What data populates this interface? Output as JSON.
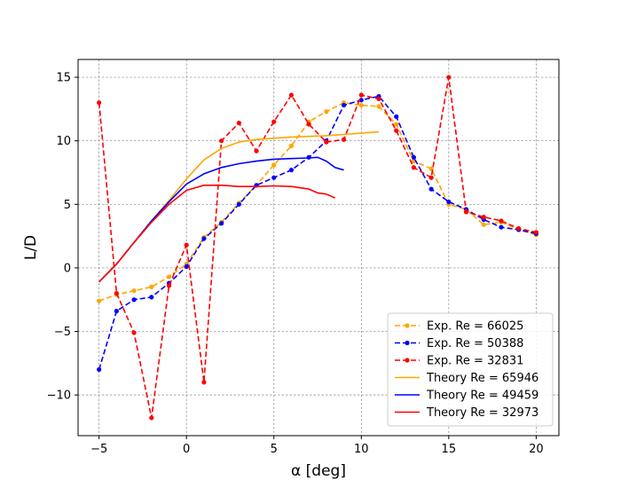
{
  "chart_data": {
    "type": "line",
    "title": "",
    "xlabel": "α [deg]",
    "ylabel": "L/D",
    "xlim": [
      -6.2,
      21.3
    ],
    "ylim": [
      -13.2,
      16.4
    ],
    "xticks": [
      -5,
      0,
      5,
      10,
      15,
      20
    ],
    "yticks": [
      -10,
      -5,
      0,
      5,
      10,
      15
    ],
    "grid": true,
    "legend_position": "lower-right",
    "series": [
      {
        "name": "Exp. Re = 66025",
        "color": "#FFA500",
        "style": "dashed",
        "marker": "dot",
        "x": [
          -5,
          -4,
          -3,
          -2,
          -1,
          0,
          1,
          2,
          3,
          4,
          5,
          6,
          7,
          8,
          9,
          10,
          11,
          12,
          13,
          14,
          15,
          16,
          17,
          18,
          19,
          20
        ],
        "y": [
          -2.6,
          -2.1,
          -1.8,
          -1.5,
          -0.7,
          0.3,
          2.4,
          3.6,
          5.1,
          6.5,
          8.1,
          9.6,
          11.5,
          12.3,
          13.0,
          12.8,
          12.7,
          11.3,
          8.4,
          7.8,
          5.0,
          4.6,
          3.4,
          3.6,
          3.0,
          2.6
        ]
      },
      {
        "name": "Exp. Re = 50388",
        "color": "#0000FF",
        "style": "dashed",
        "marker": "dot",
        "x": [
          -5,
          -4,
          -3,
          -2,
          -1,
          0,
          1,
          2,
          3,
          4,
          5,
          6,
          7,
          8,
          9,
          10,
          11,
          12,
          13,
          14,
          15,
          16,
          17,
          18,
          19,
          20
        ],
        "y": [
          -8.0,
          -3.4,
          -2.5,
          -2.3,
          -1.2,
          0.1,
          2.3,
          3.5,
          5.0,
          6.5,
          7.1,
          7.7,
          8.7,
          10.0,
          12.8,
          13.2,
          13.5,
          11.9,
          8.7,
          6.2,
          5.2,
          4.6,
          3.8,
          3.2,
          3.0,
          2.7
        ]
      },
      {
        "name": "Exp. Re = 32831",
        "color": "#FF0000",
        "style": "dashed",
        "marker": "dot",
        "x": [
          -5,
          -4,
          -3,
          -2,
          -1,
          0,
          1,
          2,
          3,
          4,
          5,
          6,
          7,
          8,
          9,
          10,
          11,
          12,
          13,
          14,
          15,
          16,
          17,
          18,
          19,
          20
        ],
        "y": [
          13.0,
          -2.0,
          -5.1,
          -11.8,
          -1.4,
          1.8,
          -9.0,
          10.0,
          11.4,
          9.2,
          11.5,
          13.6,
          11.3,
          9.9,
          10.1,
          13.6,
          13.3,
          10.8,
          7.9,
          7.1,
          15.0,
          4.4,
          4.0,
          3.7,
          3.1,
          2.8
        ]
      },
      {
        "name": "Theory Re = 65946",
        "color": "#FFA500",
        "style": "solid",
        "marker": "none",
        "x": [
          -5,
          -4,
          -3,
          -2,
          -1,
          0,
          1,
          2,
          3,
          4,
          5,
          6,
          7,
          8,
          9,
          10,
          11
        ],
        "y": [
          -1.1,
          0.3,
          2.0,
          3.7,
          5.3,
          7.0,
          8.5,
          9.4,
          9.9,
          10.1,
          10.2,
          10.3,
          10.35,
          10.4,
          10.5,
          10.6,
          10.7
        ]
      },
      {
        "name": "Theory Re = 49459",
        "color": "#0000FF",
        "style": "solid",
        "marker": "none",
        "x": [
          -5,
          -4,
          -3,
          -2,
          -1,
          0,
          1,
          2,
          3,
          4,
          5,
          6,
          7,
          7.5,
          8,
          8.5,
          9
        ],
        "y": [
          -1.1,
          0.3,
          2.0,
          3.7,
          5.2,
          6.6,
          7.4,
          7.9,
          8.2,
          8.4,
          8.55,
          8.6,
          8.65,
          8.7,
          8.4,
          7.9,
          7.7
        ]
      },
      {
        "name": "Theory Re = 32973",
        "color": "#FF0000",
        "style": "solid",
        "marker": "none",
        "x": [
          -5,
          -4,
          -3,
          -2,
          -1,
          0,
          1,
          2,
          3,
          4,
          5,
          6,
          7,
          7.5,
          8,
          8.5
        ],
        "y": [
          -1.1,
          0.3,
          2.0,
          3.6,
          5.0,
          6.1,
          6.5,
          6.5,
          6.4,
          6.4,
          6.45,
          6.4,
          6.2,
          5.9,
          5.8,
          5.5
        ]
      }
    ]
  }
}
